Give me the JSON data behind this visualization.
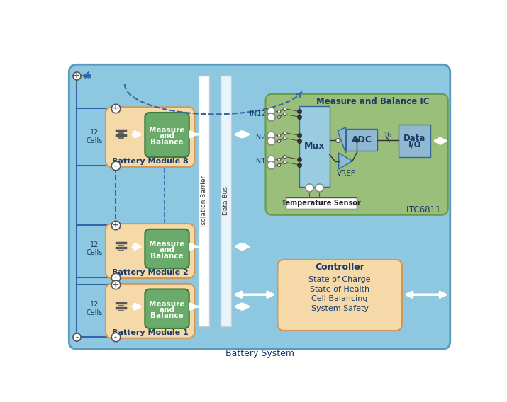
{
  "bg_outer": "#8dc8e0",
  "bg_module": "#f5d9a8",
  "bg_measure": "#6aaa6a",
  "bg_ic": "#9abf7a",
  "bg_mux": "#9acce0",
  "bg_adc": "#90b8d0",
  "bg_controller": "#f5d9a8",
  "bg_temp": "#ffffff",
  "color_text_dark": "#1a3a6a",
  "color_text_white": "#ffffff",
  "color_wire": "#3366aa",
  "color_border_module": "#d09858",
  "color_border_ic": "#6a9a4a",
  "color_border_measure": "#3a7a3a",
  "title": "Battery System",
  "controller_lines": [
    "Controller",
    "State of Charge",
    "State of Health",
    "Cell Balancing",
    "System Safety"
  ]
}
